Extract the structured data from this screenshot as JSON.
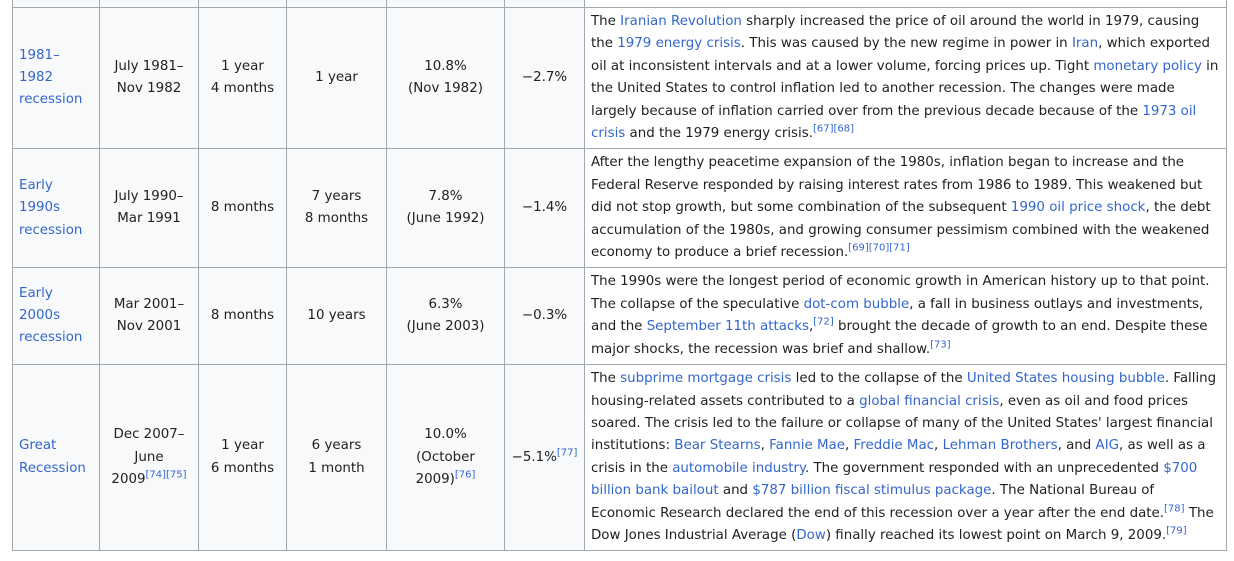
{
  "table": {
    "rows": [
      {
        "name": [
          {
            "link": "1981–1982\nrecession"
          }
        ],
        "period": [
          {
            "text": "July 1981–\nNov 1982"
          }
        ],
        "duration": [
          {
            "text": "1 year\n4 months"
          }
        ],
        "time_since_previous": [
          {
            "text": "1 year"
          }
        ],
        "peak_unemployment": [
          {
            "text": "10.8%\n(Nov 1982)"
          }
        ],
        "gdp_decline": [
          {
            "text": "−2.7%"
          }
        ],
        "characteristics": [
          {
            "text": "The "
          },
          {
            "link": "Iranian Revolution"
          },
          {
            "text": " sharply increased the price of oil around the world in 1979, causing the "
          },
          {
            "link": "1979 energy crisis"
          },
          {
            "text": ". This was caused by the new regime in power in "
          },
          {
            "link": "Iran"
          },
          {
            "text": ", which exported oil at inconsistent intervals and at a lower volume, forcing prices up. Tight "
          },
          {
            "link": "monetary policy"
          },
          {
            "text": " in the United States to control inflation led to another recession. The changes were made largely because of inflation carried over from the previous decade because of the "
          },
          {
            "link": "1973 oil crisis"
          },
          {
            "text": " and the 1979 energy crisis."
          },
          {
            "ref": "[67][68]"
          }
        ]
      },
      {
        "name": [
          {
            "link": "Early 1990s\nrecession"
          }
        ],
        "period": [
          {
            "text": "July 1990–\nMar 1991"
          }
        ],
        "duration": [
          {
            "text": "8 months"
          }
        ],
        "time_since_previous": [
          {
            "text": "7 years\n8 months"
          }
        ],
        "peak_unemployment": [
          {
            "text": "7.8%\n(June 1992)"
          }
        ],
        "gdp_decline": [
          {
            "text": "−1.4%"
          }
        ],
        "characteristics": [
          {
            "text": "After the lengthy peacetime expansion of the 1980s, inflation began to increase and the Federal Reserve responded by raising interest rates from 1986 to 1989. This weakened but did not stop growth, but some combination of the subsequent "
          },
          {
            "link": "1990 oil price shock"
          },
          {
            "text": ", the debt accumulation of the 1980s, and growing consumer pessimism combined with the weakened economy to produce a brief recession."
          },
          {
            "ref": "[69][70][71]"
          }
        ]
      },
      {
        "name": [
          {
            "link": "Early 2000s\nrecession"
          }
        ],
        "period": [
          {
            "text": "Mar 2001–\nNov 2001"
          }
        ],
        "duration": [
          {
            "text": "8 months"
          }
        ],
        "time_since_previous": [
          {
            "text": "10 years"
          }
        ],
        "peak_unemployment": [
          {
            "text": "6.3%\n(June 2003)"
          }
        ],
        "gdp_decline": [
          {
            "text": "−0.3%"
          }
        ],
        "characteristics": [
          {
            "text": "The 1990s were the longest period of economic growth in American history up to that point. The collapse of the speculative "
          },
          {
            "link": "dot-com bubble"
          },
          {
            "text": ", a fall in business outlays and investments, and the "
          },
          {
            "link": "September 11th attacks"
          },
          {
            "text": ","
          },
          {
            "ref": "[72]"
          },
          {
            "text": " brought the decade of growth to an end. Despite these major shocks, the recession was brief and shallow."
          },
          {
            "ref": "[73]"
          }
        ]
      },
      {
        "name": [
          {
            "link": "Great\nRecession"
          }
        ],
        "period": [
          {
            "text": "Dec 2007–\nJune\n2009"
          },
          {
            "ref": "[74][75]"
          }
        ],
        "duration": [
          {
            "text": "1 year\n6 months"
          }
        ],
        "time_since_previous": [
          {
            "text": "6 years\n1 month"
          }
        ],
        "peak_unemployment": [
          {
            "text": "10.0%\n(October\n2009)"
          },
          {
            "ref": "[76]"
          }
        ],
        "gdp_decline": [
          {
            "text": "−5.1%"
          },
          {
            "ref": "[77]"
          }
        ],
        "characteristics": [
          {
            "text": "The "
          },
          {
            "link": "subprime mortgage crisis"
          },
          {
            "text": " led to the collapse of the "
          },
          {
            "link": "United States housing bubble"
          },
          {
            "text": ". Falling housing-related assets contributed to a "
          },
          {
            "link": "global financial crisis"
          },
          {
            "text": ", even as oil and food prices soared. The crisis led to the failure or collapse of many of the United States' largest financial institutions: "
          },
          {
            "link": "Bear Stearns"
          },
          {
            "text": ", "
          },
          {
            "link": "Fannie Mae"
          },
          {
            "text": ", "
          },
          {
            "link": "Freddie Mac"
          },
          {
            "text": ", "
          },
          {
            "link": "Lehman Brothers"
          },
          {
            "text": ", and "
          },
          {
            "link": "AIG"
          },
          {
            "text": ", as well as a crisis in the "
          },
          {
            "link": "automobile industry"
          },
          {
            "text": ". The government responded with an unprecedented "
          },
          {
            "link": "$700 billion bank bailout"
          },
          {
            "text": " and "
          },
          {
            "link": "$787 billion fiscal stimulus package"
          },
          {
            "text": ". The National Bureau of Economic Research declared the end of this recession over a year after the end date."
          },
          {
            "ref": "[78]"
          },
          {
            "text": " The Dow Jones Industrial Average ("
          },
          {
            "link": "Dow"
          },
          {
            "text": ") finally reached its lowest point on March 9, 2009."
          },
          {
            "ref": "[79]"
          }
        ]
      }
    ]
  }
}
